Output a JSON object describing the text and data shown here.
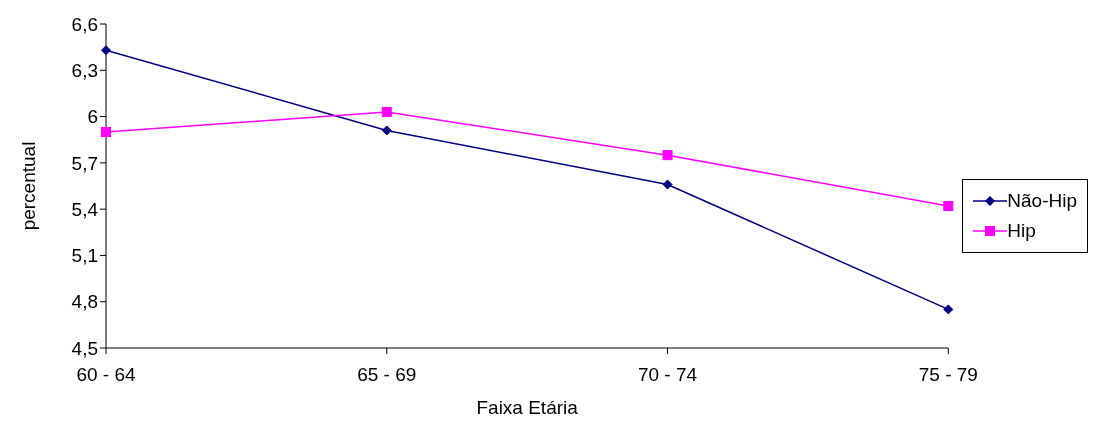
{
  "chart_data": {
    "type": "line",
    "xlabel": "Faixa Etária",
    "ylabel": "percentual",
    "categories": [
      "60 - 64",
      "65 - 69",
      "70 - 74",
      "75 - 79"
    ],
    "series": [
      {
        "name": "Não-Hip",
        "color": "#000080",
        "marker": "diamond",
        "values": [
          6.43,
          5.91,
          5.56,
          4.75
        ]
      },
      {
        "name": "Hip",
        "color": "#ff00ff",
        "marker": "square",
        "values": [
          5.9,
          6.03,
          5.75,
          5.42
        ]
      }
    ],
    "ylim": [
      4.5,
      6.6
    ],
    "yticks": [
      {
        "value": 4.5,
        "label": "4,5"
      },
      {
        "value": 4.8,
        "label": "4,8"
      },
      {
        "value": 5.1,
        "label": "5,1"
      },
      {
        "value": 5.4,
        "label": "5,4"
      },
      {
        "value": 5.7,
        "label": "5,7"
      },
      {
        "value": 6,
        "label": "6"
      },
      {
        "value": 6.3,
        "label": "6,3"
      },
      {
        "value": 6.6,
        "label": "6,6"
      }
    ],
    "grid": false,
    "legend": "right"
  }
}
